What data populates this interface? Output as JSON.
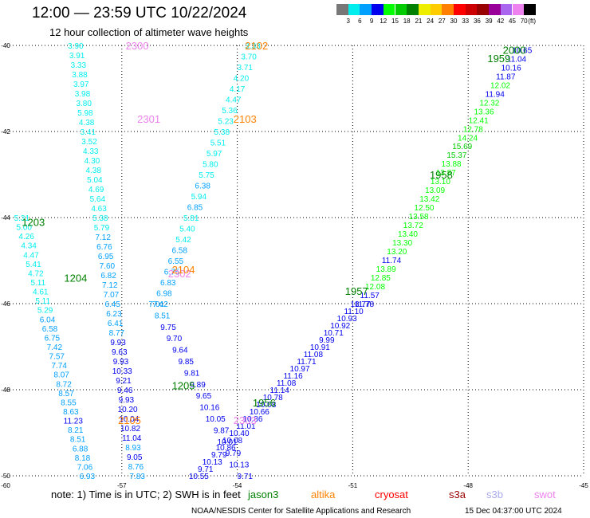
{
  "header": {
    "title": "12:00 — 23:59 UTC 10/22/2024",
    "subtitle": "12 hour collection of altimeter wave heights"
  },
  "colorbar": {
    "colors": [
      "#777777",
      "#00eeee",
      "#00a0ff",
      "#0000ee",
      "#00ff00",
      "#00cc00",
      "#008000",
      "#eeee00",
      "#ffcc00",
      "#ff8000",
      "#ff0000",
      "#cc0000",
      "#990000",
      "#990099",
      "#aa66ee",
      "#ee82ee",
      "#000000"
    ],
    "labels": [
      "3",
      "6",
      "9",
      "12",
      "15",
      "18",
      "21",
      "24",
      "27",
      "30",
      "33",
      "36",
      "39",
      "42",
      "45",
      "70",
      "(ft)"
    ]
  },
  "note": "note: 1) Time is in UTC; 2) SWH is in feet",
  "legend": [
    {
      "name": "jason3",
      "color": "#008000"
    },
    {
      "name": "altika",
      "color": "#ff8000"
    },
    {
      "name": "cryosat",
      "color": "#ff0000"
    },
    {
      "name": "s3a",
      "color": "#990000"
    },
    {
      "name": "s3b",
      "color": "#aaaaee"
    },
    {
      "name": "swot",
      "color": "#ee82ee"
    }
  ],
  "footer": {
    "left": "NOAA/NESDIS Center for Satellite Applications and Research",
    "right": "15 Dec 04:37:00 UTC 2024"
  },
  "chart_data": {
    "type": "scatter",
    "xlim": [
      -60,
      -45
    ],
    "ylim": [
      -50,
      -40
    ],
    "xticks": [
      -57,
      -54,
      -51,
      -48,
      -45
    ],
    "yticks": [
      -40,
      -42,
      -44,
      -46,
      -48,
      -50
    ],
    "xtick_labels": [
      "-57",
      "-54",
      "-51",
      "-48",
      "-45"
    ],
    "ytick_labels": [
      "-40",
      "-42",
      "-44",
      "-46",
      "-48",
      "-50"
    ],
    "corner_label": "-60",
    "grid": true,
    "time_labels": [
      {
        "text": "2300",
        "lon": -56.6,
        "lat": -40.0,
        "color": "#ee82ee"
      },
      {
        "text": "2301",
        "lon": -56.3,
        "lat": -41.7,
        "color": "#ee82ee"
      },
      {
        "text": "2302",
        "lon": -55.5,
        "lat": -45.3,
        "color": "#ee82ee"
      },
      {
        "text": "2303",
        "lon": -53.8,
        "lat": -48.7,
        "color": "#ee82ee"
      },
      {
        "text": "2102",
        "lon": -53.5,
        "lat": -40.0,
        "color": "#ff8000"
      },
      {
        "text": "2103",
        "lon": -53.8,
        "lat": -41.7,
        "color": "#ff8000"
      },
      {
        "text": "2104",
        "lon": -55.4,
        "lat": -45.2,
        "color": "#ff8000"
      },
      {
        "text": "2105",
        "lon": -56.8,
        "lat": -48.7,
        "color": "#ff8000"
      },
      {
        "text": "1203",
        "lon": -59.3,
        "lat": -44.1,
        "color": "#008000"
      },
      {
        "text": "1204",
        "lon": -58.2,
        "lat": -45.4,
        "color": "#008000"
      },
      {
        "text": "1205",
        "lon": -55.4,
        "lat": -47.9,
        "color": "#008000"
      },
      {
        "text": "1956",
        "lon": -53.3,
        "lat": -48.3,
        "color": "#008000"
      },
      {
        "text": "1957",
        "lon": -50.9,
        "lat": -45.7,
        "color": "#008000"
      },
      {
        "text": "1958",
        "lon": -48.7,
        "lat": -43.0,
        "color": "#008000"
      },
      {
        "text": "1959",
        "lon": -47.2,
        "lat": -40.3,
        "color": "#008000"
      },
      {
        "text": "2000",
        "lon": -46.8,
        "lat": -40.1,
        "color": "#008000"
      }
    ],
    "tracks": [
      {
        "start": [
          -58.2,
          -40.0
        ],
        "end": [
          -56.6,
          -50.0
        ],
        "values": [
          3.9,
          3.91,
          3.33,
          3.88,
          3.97,
          3.98,
          3.8,
          5.98,
          4.38,
          3.41,
          3.52,
          4.33,
          4.3,
          4.38,
          5.04,
          4.69,
          5.64,
          4.63,
          5.38,
          5.79,
          7.12,
          6.76,
          6.95,
          7.6,
          6.82,
          7.12,
          7.07,
          6.45,
          6.23,
          6.41,
          8.77,
          9.93,
          9.63,
          9.93,
          10.33,
          9.21,
          9.46,
          9.93,
          10.2,
          10.04,
          10.82,
          11.04,
          8.93,
          9.05,
          8.76,
          7.83
        ]
      },
      {
        "start": [
          -59.6,
          -44.0
        ],
        "end": [
          -57.9,
          -50.0
        ],
        "values": [
          5.31,
          5.0,
          4.26,
          4.34,
          4.47,
          5.41,
          4.72,
          5.11,
          4.61,
          5.11,
          5.29,
          6.04,
          6.58,
          6.75,
          7.42,
          7.57,
          7.74,
          8.07,
          8.72,
          8.57,
          8.55,
          8.63,
          11.23,
          8.21,
          8.51,
          6.88,
          8.18,
          7.06,
          6.93
        ]
      },
      {
        "start": [
          -53.6,
          -40.0
        ],
        "end": [
          -56.0,
          -46.0
        ],
        "values": [
          3.33,
          3.7,
          3.71,
          4.2,
          4.17,
          4.47,
          5.36,
          5.23,
          5.38,
          5.51,
          5.97,
          5.8,
          5.75,
          6.38,
          5.94,
          6.85,
          5.81,
          5.4,
          5.42,
          6.58,
          6.55,
          6.75,
          6.83,
          6.98,
          7.42
        ]
      },
      {
        "start": [
          -56.1,
          -46.0
        ],
        "end": [
          -53.8,
          -50.0
        ],
        "values": [
          7.01,
          8.51,
          9.75,
          9.7,
          9.64,
          9.85,
          9.81,
          9.89,
          9.65,
          10.16,
          10.05,
          9.87,
          10.01,
          9.79,
          10.13,
          9.71
        ]
      },
      {
        "start": [
          -46.6,
          -40.1
        ],
        "end": [
          -50.7,
          -46.0
        ],
        "values": [
          10.65,
          11.04,
          10.16,
          11.87,
          12.02,
          11.94,
          12.32,
          13.36,
          12.41,
          12.78,
          14.24,
          15.69,
          15.37,
          13.88,
          13.87,
          13.1,
          13.09,
          13.42,
          12.5,
          13.58,
          13.72,
          13.4,
          13.3,
          13.2,
          11.74,
          13.89,
          12.85,
          12.08,
          11.57,
          11.78
        ]
      },
      {
        "start": [
          -50.8,
          -46.0
        ],
        "end": [
          -55.0,
          -50.0
        ],
        "values": [
          10.77,
          11.1,
          10.93,
          10.92,
          10.71,
          9.99,
          10.91,
          11.08,
          11.71,
          10.97,
          11.16,
          11.08,
          11.14,
          10.78,
          10.08,
          10.66,
          10.86,
          11.01,
          10.4,
          10.08,
          10.86,
          9.79,
          10.13,
          9.71,
          10.55
        ]
      }
    ]
  }
}
